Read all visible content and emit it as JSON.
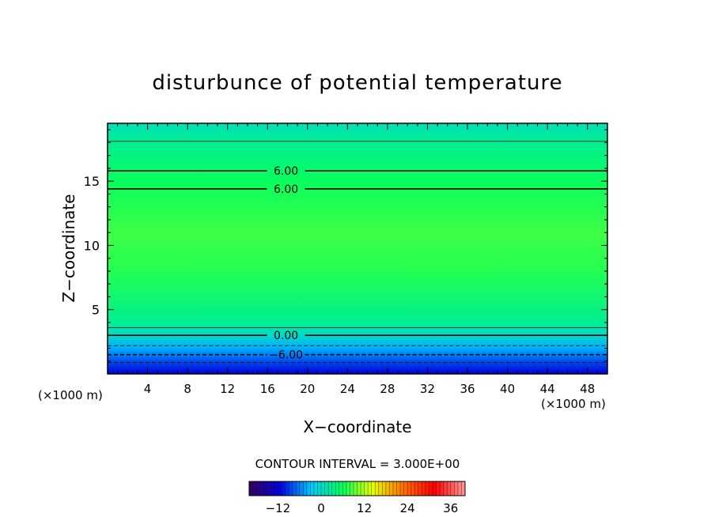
{
  "chart_data": {
    "type": "heatmap",
    "title": "disturbunce of potential temperature",
    "xlabel": "X−coordinate",
    "ylabel": "Z−coordinate",
    "x_unit": "(×1000 m)",
    "y_unit": "(×1000 m)",
    "xlim": [
      0,
      50
    ],
    "ylim": [
      0,
      19.5
    ],
    "x_ticks": [
      4,
      8,
      12,
      16,
      20,
      24,
      28,
      32,
      36,
      40,
      44,
      48
    ],
    "y_ticks": [
      5,
      10,
      15
    ],
    "field_profile": [
      {
        "z": 0.0,
        "value": -12
      },
      {
        "z": 1.0,
        "value": -8
      },
      {
        "z": 2.0,
        "value": -4
      },
      {
        "z": 3.0,
        "value": 0
      },
      {
        "z": 4.0,
        "value": 3
      },
      {
        "z": 8.0,
        "value": 7
      },
      {
        "z": 11.0,
        "value": 8
      },
      {
        "z": 15.0,
        "value": 6
      },
      {
        "z": 18.0,
        "value": 3
      },
      {
        "z": 19.5,
        "value": 1
      }
    ],
    "contours": [
      {
        "level_label": "6.00",
        "z": 15.8,
        "style": "solid",
        "weight": "thick"
      },
      {
        "level_label": "6.00",
        "z": 14.4,
        "style": "solid",
        "weight": "thick"
      },
      {
        "level_label": "",
        "z": 18.1,
        "style": "solid",
        "weight": "thin"
      },
      {
        "level_label": "0.00",
        "z": 3.0,
        "style": "solid",
        "weight": "thick"
      },
      {
        "level_label": "",
        "z": 3.6,
        "style": "solid",
        "weight": "thin"
      },
      {
        "level_label": "",
        "z": 2.2,
        "style": "dashed",
        "weight": "thin"
      },
      {
        "level_label": "−6.00",
        "z": 1.5,
        "style": "dashed",
        "weight": "thick"
      },
      {
        "level_label": "",
        "z": 0.9,
        "style": "dashed",
        "weight": "thin"
      }
    ],
    "annotation": "CONTOUR INTERVAL = 3.000E+00",
    "colorbar": {
      "range": [
        -20,
        40
      ],
      "ticks": [
        -12,
        0,
        12,
        24,
        36
      ],
      "tick_labels": [
        "−12",
        "0",
        "12",
        "24",
        "36"
      ],
      "colors": [
        "#3a0060",
        "#0000e0",
        "#00c8ff",
        "#00ff60",
        "#e8ff00",
        "#ff7000",
        "#ff0000",
        "#ff9a9a"
      ]
    }
  }
}
